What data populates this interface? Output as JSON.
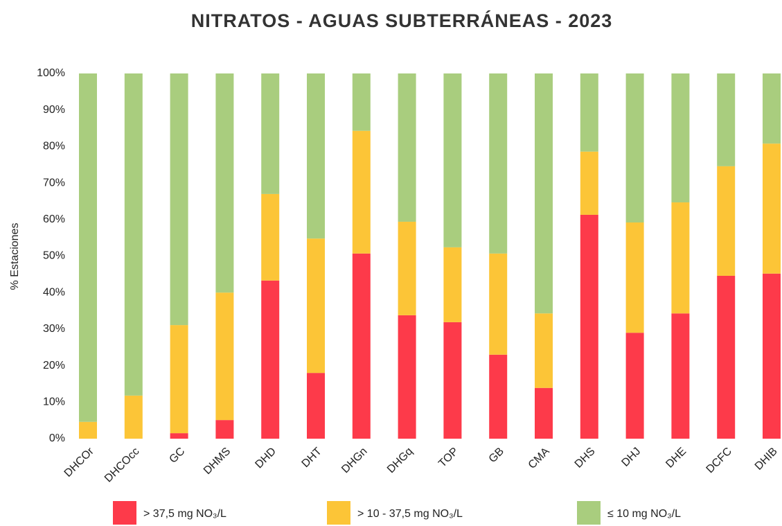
{
  "chart_data": {
    "type": "bar",
    "stacked": true,
    "title": "NITRATOS - AGUAS SUBTERRÁNEAS - 2023",
    "y_label": "% Estaciones",
    "categories": [
      "DHCOr",
      "DHCOcc",
      "GC",
      "DHMS",
      "DHD",
      "DHT",
      "DHGn",
      "DHGq",
      "TOP",
      "GB",
      "CMA",
      "DHS",
      "DHJ",
      "DHE",
      "DCFC",
      "DHIB"
    ],
    "series": [
      {
        "name": "> 37,5 mg NO₃/L",
        "color": "#fd3a4a",
        "values": [
          0,
          0,
          1.5,
          5.1,
          43.3,
          18.0,
          50.7,
          33.8,
          31.9,
          23.0,
          13.9,
          61.3,
          29.0,
          34.3,
          44.6,
          45.2
        ]
      },
      {
        "name": "> 10 - 37,5 mg NO₃/L",
        "color": "#fcc537",
        "values": [
          4.6,
          11.8,
          29.6,
          34.9,
          23.7,
          36.8,
          33.6,
          25.6,
          20.5,
          27.7,
          20.4,
          17.3,
          30.2,
          30.4,
          30.0,
          35.6
        ]
      },
      {
        "name": "≤ 10 mg NO₃/L",
        "color": "#a9cd7e",
        "values": [
          95.4,
          88.2,
          68.9,
          60.0,
          33.0,
          45.2,
          15.7,
          40.6,
          47.6,
          49.3,
          65.7,
          21.4,
          40.8,
          35.3,
          25.4,
          19.2
        ]
      }
    ],
    "ylim": [
      0,
      100
    ],
    "yticks": [
      {
        "value": 0,
        "label": "0%"
      },
      {
        "value": 10,
        "label": "10%"
      },
      {
        "value": 20,
        "label": "20%"
      },
      {
        "value": 30,
        "label": "30%"
      },
      {
        "value": 40,
        "label": "40%"
      },
      {
        "value": 50,
        "label": "50%"
      },
      {
        "value": 60,
        "label": "60%"
      },
      {
        "value": 70,
        "label": "70%"
      },
      {
        "value": 80,
        "label": "80%"
      },
      {
        "value": 90,
        "label": "90%"
      },
      {
        "value": 100,
        "label": "100%"
      }
    ],
    "grid": false,
    "legend": "bottom"
  }
}
